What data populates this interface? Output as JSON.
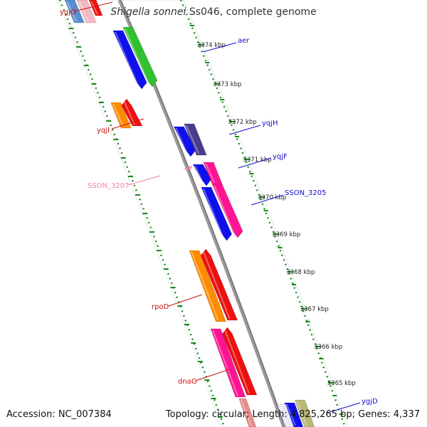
{
  "title": {
    "species": "Shigella sonnei",
    "strain": "Ss046, complete genome"
  },
  "footer": {
    "accession": "Accession: NC_007384",
    "topology": "Topology: circular; Length: 4,825,265 bp; Genes: 4,337"
  },
  "colors": {
    "ruler": "#1a8a1a",
    "backbone": "#888888",
    "forward_label": "#1010cc",
    "reverse_label": "#cc1010",
    "pseudo_label": "#f080b0"
  },
  "ruler_ticks": [
    "3374 kbp",
    "3373 kbp",
    "3372 kbp",
    "3371 kbp",
    "3370 kbp",
    "3369 kbp",
    "3368 kbp",
    "3367 kbp",
    "3366 kbp",
    "3365 kbp"
  ],
  "gene_labels": [
    {
      "name": "ygjG",
      "strand": "reverse"
    },
    {
      "name": "aer",
      "strand": "forward"
    },
    {
      "name": "yqjI",
      "strand": "reverse"
    },
    {
      "name": "yqjH",
      "strand": "forward"
    },
    {
      "name": "yqjF",
      "strand": "forward"
    },
    {
      "name": "SSON_3207",
      "strand": "pseudo"
    },
    {
      "name": "SSON_3205",
      "strand": "forward"
    },
    {
      "name": "rpoD",
      "strand": "reverse"
    },
    {
      "name": "dnaG",
      "strand": "reverse"
    },
    {
      "name": "ygjD",
      "strand": "forward"
    }
  ]
}
